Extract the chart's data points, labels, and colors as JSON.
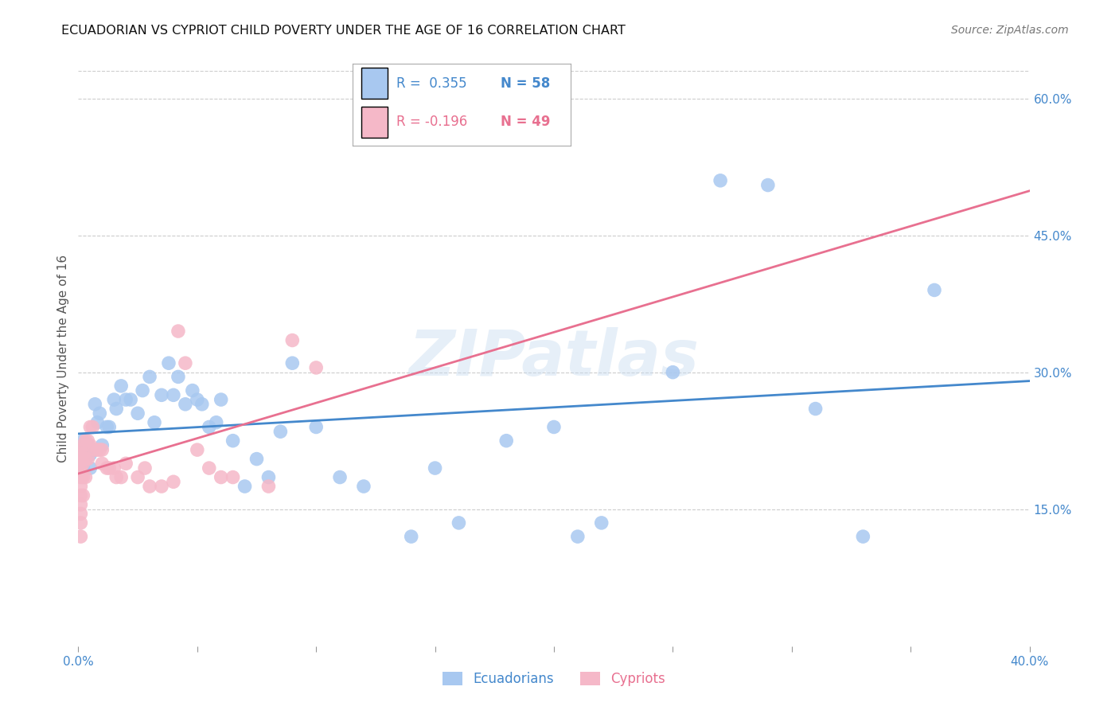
{
  "title": "ECUADORIAN VS CYPRIOT CHILD POVERTY UNDER THE AGE OF 16 CORRELATION CHART",
  "source": "Source: ZipAtlas.com",
  "ylabel": "Child Poverty Under the Age of 16",
  "xlim": [
    0.0,
    0.4
  ],
  "ylim": [
    0.0,
    0.63
  ],
  "xticks": [
    0.0,
    0.05,
    0.1,
    0.15,
    0.2,
    0.25,
    0.3,
    0.35,
    0.4
  ],
  "yticks_right": [
    0.0,
    0.15,
    0.3,
    0.45,
    0.6
  ],
  "ytick_right_labels": [
    "",
    "15.0%",
    "30.0%",
    "45.0%",
    "60.0%"
  ],
  "legend_blue_r": "R =  0.355",
  "legend_blue_n": "N = 58",
  "legend_pink_r": "R = -0.196",
  "legend_pink_n": "N = 49",
  "legend_label_blue": "Ecuadorians",
  "legend_label_pink": "Cypriots",
  "blue_fill_color": "#a8c8f0",
  "pink_fill_color": "#f5b8c8",
  "blue_line_color": "#4488cc",
  "pink_line_color": "#e87090",
  "blue_text_color": "#4488cc",
  "pink_text_color": "#e87090",
  "blue_x": [
    0.001,
    0.001,
    0.002,
    0.002,
    0.003,
    0.003,
    0.004,
    0.005,
    0.005,
    0.006,
    0.007,
    0.008,
    0.009,
    0.01,
    0.012,
    0.013,
    0.015,
    0.016,
    0.018,
    0.02,
    0.022,
    0.025,
    0.027,
    0.03,
    0.032,
    0.035,
    0.038,
    0.04,
    0.042,
    0.045,
    0.048,
    0.05,
    0.052,
    0.055,
    0.058,
    0.06,
    0.065,
    0.07,
    0.075,
    0.08,
    0.085,
    0.09,
    0.1,
    0.11,
    0.12,
    0.14,
    0.15,
    0.16,
    0.18,
    0.2,
    0.21,
    0.22,
    0.25,
    0.27,
    0.29,
    0.31,
    0.33,
    0.36
  ],
  "blue_y": [
    0.215,
    0.2,
    0.225,
    0.195,
    0.215,
    0.205,
    0.22,
    0.21,
    0.195,
    0.215,
    0.265,
    0.245,
    0.255,
    0.22,
    0.24,
    0.24,
    0.27,
    0.26,
    0.285,
    0.27,
    0.27,
    0.255,
    0.28,
    0.295,
    0.245,
    0.275,
    0.31,
    0.275,
    0.295,
    0.265,
    0.28,
    0.27,
    0.265,
    0.24,
    0.245,
    0.27,
    0.225,
    0.175,
    0.205,
    0.185,
    0.235,
    0.31,
    0.24,
    0.185,
    0.175,
    0.12,
    0.195,
    0.135,
    0.225,
    0.24,
    0.12,
    0.135,
    0.3,
    0.51,
    0.505,
    0.26,
    0.12,
    0.39
  ],
  "pink_x": [
    0.001,
    0.001,
    0.001,
    0.001,
    0.001,
    0.001,
    0.001,
    0.001,
    0.001,
    0.001,
    0.001,
    0.002,
    0.002,
    0.002,
    0.002,
    0.002,
    0.003,
    0.003,
    0.003,
    0.004,
    0.004,
    0.005,
    0.005,
    0.006,
    0.007,
    0.008,
    0.009,
    0.01,
    0.01,
    0.012,
    0.013,
    0.015,
    0.016,
    0.018,
    0.02,
    0.025,
    0.028,
    0.03,
    0.035,
    0.04,
    0.042,
    0.045,
    0.05,
    0.055,
    0.06,
    0.065,
    0.08,
    0.09,
    0.1
  ],
  "pink_y": [
    0.215,
    0.205,
    0.195,
    0.19,
    0.185,
    0.175,
    0.165,
    0.155,
    0.145,
    0.135,
    0.12,
    0.22,
    0.21,
    0.2,
    0.185,
    0.165,
    0.225,
    0.205,
    0.185,
    0.225,
    0.205,
    0.24,
    0.22,
    0.24,
    0.215,
    0.215,
    0.215,
    0.215,
    0.2,
    0.195,
    0.195,
    0.195,
    0.185,
    0.185,
    0.2,
    0.185,
    0.195,
    0.175,
    0.175,
    0.18,
    0.345,
    0.31,
    0.215,
    0.195,
    0.185,
    0.185,
    0.175,
    0.335,
    0.305
  ],
  "watermark": "ZIPatlas",
  "background_color": "#ffffff",
  "grid_color": "#cccccc",
  "title_fontsize": 11.5,
  "source_fontsize": 10,
  "axis_label_fontsize": 11,
  "tick_fontsize": 11,
  "legend_fontsize": 12
}
